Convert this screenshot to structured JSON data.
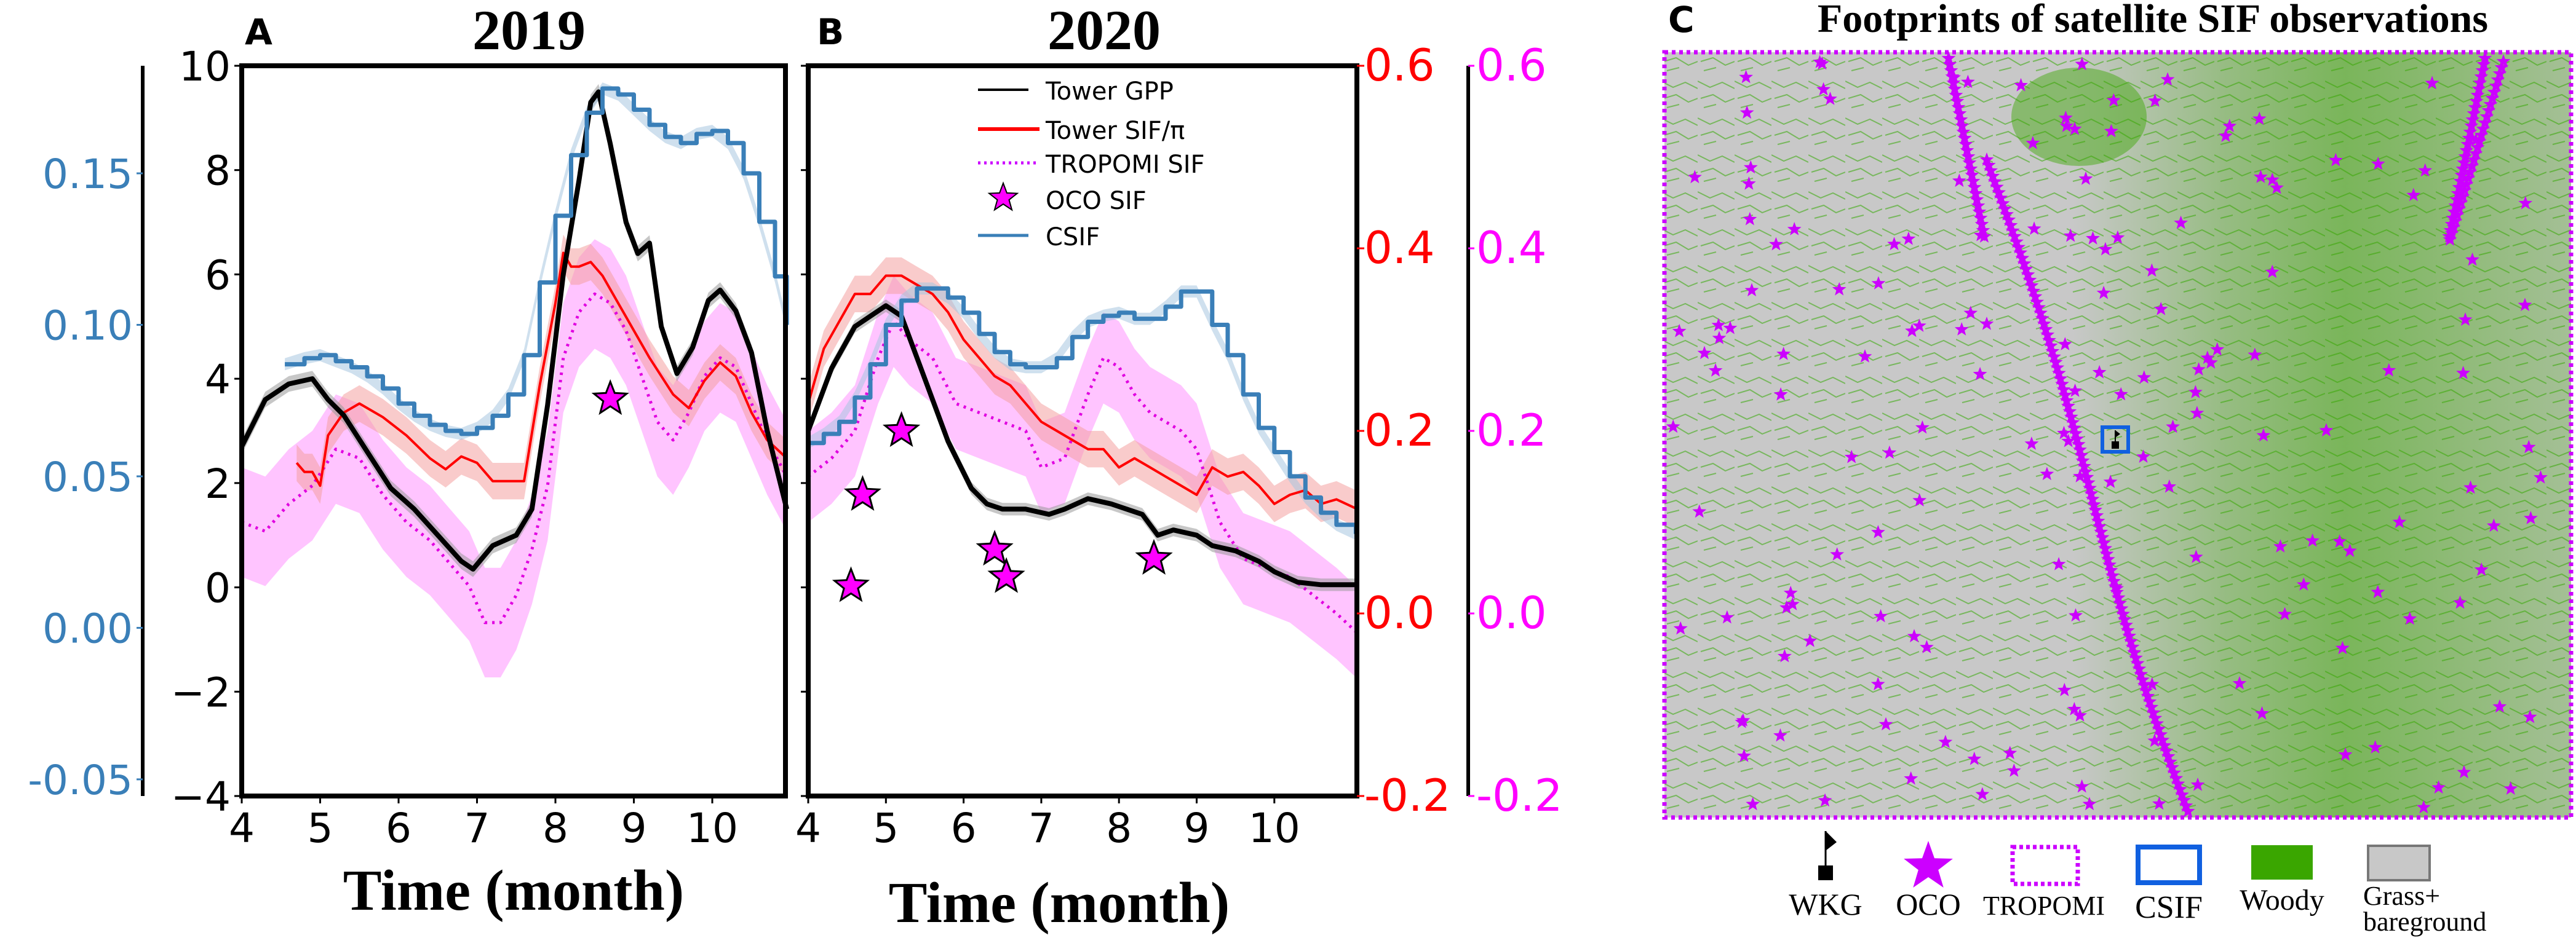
{
  "chart_data": [
    {
      "id": "A",
      "type": "line",
      "panel_label": "A",
      "title": "2019",
      "xlabel": "Time (month)",
      "xlim": [
        4,
        10.95
      ],
      "xticks": [
        4,
        5,
        6,
        7,
        8,
        9,
        10
      ],
      "ylim_gpp": [
        -4,
        10
      ],
      "yticks_gpp": [
        -4,
        -2,
        0,
        2,
        4,
        6,
        8,
        10
      ],
      "ylim_csif": [
        -0.0555,
        0.1855
      ],
      "yticks_csif": [
        "-0.05",
        "0.00",
        "0.05",
        "0.10",
        "0.15"
      ],
      "yticks_csif_values": [
        -0.05,
        0.0,
        0.05,
        0.1,
        0.15
      ],
      "ylim_sif": [
        -0.2,
        0.6
      ],
      "series": [
        {
          "name": "Tower GPP",
          "axis": "gpp",
          "color": "#000000",
          "x": [
            4.0,
            4.3,
            4.6,
            4.9,
            5.1,
            5.3,
            5.6,
            5.9,
            6.2,
            6.5,
            6.8,
            6.95,
            7.2,
            7.5,
            7.7,
            7.9,
            8.1,
            8.3,
            8.45,
            8.55,
            8.7,
            8.9,
            9.05,
            9.2,
            9.35,
            9.55,
            9.75,
            9.95,
            10.1,
            10.3,
            10.5,
            10.7,
            10.95
          ],
          "y": [
            2.7,
            3.6,
            3.9,
            4.0,
            3.6,
            3.3,
            2.6,
            1.9,
            1.5,
            1.0,
            0.5,
            0.35,
            0.8,
            1.0,
            1.5,
            3.5,
            6.0,
            7.8,
            9.3,
            9.5,
            8.5,
            7.0,
            6.4,
            6.6,
            5.0,
            4.1,
            4.6,
            5.5,
            5.7,
            5.3,
            4.5,
            3.0,
            1.5
          ],
          "band": 0.15
        },
        {
          "name": "Tower SIF/π",
          "axis": "sif",
          "color": "#ff0000",
          "x": [
            4.7,
            4.8,
            4.9,
            5.0,
            5.1,
            5.3,
            5.5,
            5.8,
            6.1,
            6.4,
            6.6,
            6.8,
            7.0,
            7.2,
            7.5,
            7.6,
            7.8,
            8.0,
            8.1,
            8.2,
            8.3,
            8.45,
            8.6,
            8.8,
            9.0,
            9.2,
            9.5,
            9.7,
            9.9,
            10.1,
            10.3,
            10.5,
            10.7,
            10.95
          ],
          "y": [
            0.165,
            0.155,
            0.155,
            0.14,
            0.195,
            0.22,
            0.23,
            0.215,
            0.195,
            0.17,
            0.158,
            0.172,
            0.165,
            0.145,
            0.145,
            0.145,
            0.25,
            0.34,
            0.395,
            0.38,
            0.38,
            0.385,
            0.37,
            0.34,
            0.31,
            0.28,
            0.24,
            0.225,
            0.255,
            0.275,
            0.26,
            0.22,
            0.19,
            0.17
          ],
          "band": 0.02
        },
        {
          "name": "TROPOMI SIF",
          "axis": "sif",
          "color": "#ff00ff",
          "dash": true,
          "x": [
            4.0,
            4.3,
            4.6,
            4.9,
            5.2,
            5.5,
            5.8,
            6.1,
            6.4,
            6.7,
            6.9,
            7.1,
            7.3,
            7.5,
            7.7,
            7.9,
            8.1,
            8.3,
            8.5,
            8.7,
            8.9,
            9.1,
            9.3,
            9.5,
            9.7,
            9.9,
            10.1,
            10.3,
            10.5,
            10.7,
            10.95
          ],
          "y": [
            0.1,
            0.09,
            0.12,
            0.14,
            0.18,
            0.17,
            0.13,
            0.1,
            0.08,
            0.05,
            0.03,
            -0.01,
            -0.01,
            0.02,
            0.07,
            0.14,
            0.28,
            0.33,
            0.35,
            0.34,
            0.31,
            0.26,
            0.21,
            0.19,
            0.22,
            0.26,
            0.28,
            0.27,
            0.23,
            0.19,
            0.15
          ],
          "band": 0.06
        },
        {
          "name": "CSIF",
          "axis": "csif",
          "color": "#3a7fb8",
          "step": true,
          "x": [
            4.55,
            4.8,
            5.0,
            5.2,
            5.4,
            5.6,
            5.8,
            6.0,
            6.2,
            6.4,
            6.6,
            6.8,
            7.0,
            7.2,
            7.4,
            7.6,
            7.8,
            8.0,
            8.2,
            8.4,
            8.6,
            8.8,
            9.0,
            9.2,
            9.4,
            9.6,
            9.8,
            10.0,
            10.2,
            10.4,
            10.6,
            10.8,
            10.95
          ],
          "y": [
            0.087,
            0.089,
            0.09,
            0.088,
            0.086,
            0.083,
            0.079,
            0.074,
            0.07,
            0.067,
            0.065,
            0.064,
            0.066,
            0.07,
            0.077,
            0.09,
            0.114,
            0.136,
            0.156,
            0.17,
            0.178,
            0.176,
            0.171,
            0.166,
            0.162,
            0.16,
            0.163,
            0.164,
            0.16,
            0.15,
            0.134,
            0.116,
            0.1
          ],
          "band": 0.002
        }
      ],
      "oco_points": [
        {
          "x": 8.7,
          "y": 0.235
        }
      ]
    },
    {
      "id": "B",
      "type": "line",
      "panel_label": "B",
      "title": "2020",
      "xlabel": "Time (month)",
      "xlim": [
        4,
        11.05
      ],
      "xticks": [
        4,
        5,
        6,
        7,
        8,
        9,
        10
      ],
      "ylim_gpp": [
        -4,
        10
      ],
      "ylim_sif": [
        -0.2,
        0.6
      ],
      "yticks_sif": [
        "0.6",
        "0.4",
        "0.2",
        "0.0",
        "-0.2"
      ],
      "yticks_sif_values": [
        0.6,
        0.4,
        0.2,
        0.0,
        -0.2
      ],
      "ylim_csif": [
        -0.0555,
        0.1855
      ],
      "series": [
        {
          "name": "Tower GPP",
          "axis": "gpp",
          "color": "#000000",
          "x": [
            4.0,
            4.3,
            4.6,
            4.8,
            5.0,
            5.2,
            5.5,
            5.8,
            6.1,
            6.3,
            6.5,
            6.8,
            7.1,
            7.3,
            7.6,
            7.9,
            8.1,
            8.3,
            8.5,
            8.7,
            9.0,
            9.2,
            9.5,
            9.8,
            10.0,
            10.3,
            10.6,
            11.05
          ],
          "y": [
            3.0,
            4.2,
            5.0,
            5.2,
            5.4,
            5.2,
            4.0,
            2.8,
            1.9,
            1.6,
            1.5,
            1.5,
            1.4,
            1.5,
            1.7,
            1.6,
            1.5,
            1.4,
            1.0,
            1.1,
            1.0,
            0.8,
            0.7,
            0.5,
            0.3,
            0.1,
            0.05,
            0.05
          ],
          "band": 0.12
        },
        {
          "name": "Tower SIF/π",
          "axis": "sif",
          "color": "#ff0000",
          "x": [
            4.0,
            4.2,
            4.4,
            4.6,
            4.8,
            5.0,
            5.2,
            5.4,
            5.6,
            5.8,
            6.0,
            6.2,
            6.4,
            6.6,
            6.8,
            7.0,
            7.2,
            7.4,
            7.6,
            7.8,
            8.0,
            8.2,
            8.4,
            8.6,
            8.8,
            9.0,
            9.2,
            9.4,
            9.6,
            9.8,
            10.0,
            10.2,
            10.4,
            10.6,
            10.8,
            11.05
          ],
          "y": [
            0.23,
            0.29,
            0.32,
            0.35,
            0.35,
            0.37,
            0.37,
            0.36,
            0.35,
            0.33,
            0.3,
            0.28,
            0.26,
            0.25,
            0.23,
            0.21,
            0.2,
            0.19,
            0.18,
            0.18,
            0.16,
            0.17,
            0.16,
            0.15,
            0.14,
            0.13,
            0.16,
            0.15,
            0.155,
            0.14,
            0.12,
            0.13,
            0.135,
            0.12,
            0.125,
            0.115
          ],
          "band": 0.02
        },
        {
          "name": "TROPOMI SIF",
          "axis": "sif",
          "color": "#ff00ff",
          "dash": true,
          "x": [
            4.0,
            4.3,
            4.6,
            4.9,
            5.1,
            5.3,
            5.6,
            5.9,
            6.2,
            6.5,
            6.8,
            7.0,
            7.3,
            7.6,
            7.8,
            8.0,
            8.2,
            8.4,
            8.6,
            8.8,
            9.0,
            9.3,
            9.6,
            9.9,
            10.2,
            10.5,
            10.8,
            11.05
          ],
          "y": [
            0.15,
            0.17,
            0.2,
            0.28,
            0.32,
            0.3,
            0.28,
            0.23,
            0.22,
            0.21,
            0.2,
            0.16,
            0.17,
            0.24,
            0.28,
            0.27,
            0.24,
            0.22,
            0.21,
            0.2,
            0.18,
            0.1,
            0.06,
            0.05,
            0.04,
            0.02,
            0.0,
            -0.02
          ],
          "band": 0.05
        },
        {
          "name": "CSIF",
          "axis": "csif",
          "color": "#3a7fb8",
          "step": true,
          "x": [
            4.0,
            4.2,
            4.4,
            4.6,
            4.8,
            5.0,
            5.2,
            5.4,
            5.6,
            5.8,
            6.0,
            6.2,
            6.4,
            6.6,
            6.8,
            7.0,
            7.2,
            7.4,
            7.6,
            7.8,
            8.0,
            8.2,
            8.4,
            8.6,
            8.8,
            9.0,
            9.2,
            9.4,
            9.6,
            9.8,
            10.0,
            10.2,
            10.4,
            10.6,
            10.8,
            11.05
          ],
          "y": [
            0.061,
            0.064,
            0.068,
            0.076,
            0.087,
            0.1,
            0.108,
            0.112,
            0.112,
            0.109,
            0.104,
            0.097,
            0.091,
            0.087,
            0.086,
            0.086,
            0.089,
            0.096,
            0.101,
            0.103,
            0.104,
            0.102,
            0.102,
            0.106,
            0.111,
            0.111,
            0.1,
            0.09,
            0.077,
            0.066,
            0.058,
            0.05,
            0.043,
            0.038,
            0.034,
            0.031
          ],
          "band": 0.002
        }
      ],
      "oco_points": [
        {
          "x": 4.55,
          "y": 0.03
        },
        {
          "x": 4.7,
          "y": 0.13
        },
        {
          "x": 5.2,
          "y": 0.2
        },
        {
          "x": 6.4,
          "y": 0.07
        },
        {
          "x": 6.55,
          "y": 0.04
        },
        {
          "x": 8.45,
          "y": 0.06
        }
      ]
    }
  ],
  "legend_b": {
    "items": [
      {
        "label": "Tower GPP"
      },
      {
        "label": "Tower SIF/π"
      },
      {
        "label": "TROPOMI SIF"
      },
      {
        "label": "OCO SIF"
      },
      {
        "label": "CSIF"
      }
    ]
  },
  "panel_c": {
    "label": "C",
    "title": "Footprints of satellite SIF observations",
    "legend": [
      {
        "label": "WKG"
      },
      {
        "label": "OCO"
      },
      {
        "label": "TROPOMI"
      },
      {
        "label": "CSIF"
      },
      {
        "label": "Woody"
      },
      {
        "label_line1": "Grass+",
        "label_line2": "bareground"
      }
    ],
    "colors": {
      "oco": "#cc00ff",
      "tropomi": "#cc00ff",
      "csif": "#1060e0",
      "woody": "#3aa600",
      "grass": "#c8c8c8"
    }
  },
  "axis_colors": {
    "gpp": "#000000",
    "csif": "#3a7fb8",
    "sif_red": "#ff0000",
    "sif_magenta": "#ff00ff"
  },
  "yticks_gpp_labels": [
    "10",
    "8",
    "6",
    "4",
    "2",
    "0",
    "−2",
    "−4"
  ],
  "xtick_labels": [
    "4",
    "5",
    "6",
    "7",
    "8",
    "9",
    "10"
  ],
  "sif_magenta_ticks": [
    "0.6",
    "0.4",
    "0.2",
    "0.0",
    "-0.2"
  ]
}
